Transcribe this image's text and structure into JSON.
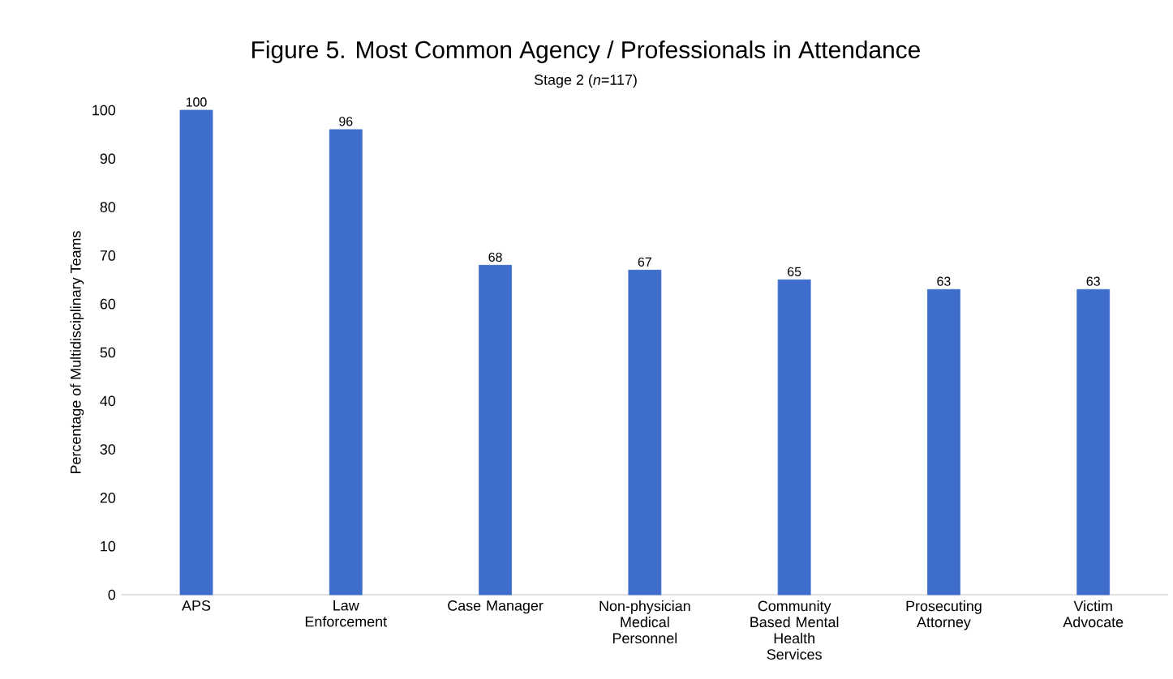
{
  "chart_data": {
    "type": "bar",
    "title": "Figure 5. Most Common Agency / Professionals in Attendance",
    "subtitle": "Stage 2 (*n*=117)",
    "ylabel": "Percentage of Multidisciplinary Teams",
    "categories": [
      "APS",
      "Law Enforcement",
      "Case Manager",
      "Non-physician Medical Personnel",
      "Community Based Mental Health Services",
      "Prosecuting Attorney",
      "Victim Advocate"
    ],
    "values": [
      100,
      96,
      68,
      67,
      65,
      63,
      63
    ],
    "color": "#3f6dcb",
    "ylim": [
      0,
      100
    ],
    "yticks": [
      0,
      10,
      20,
      30,
      40,
      50,
      60,
      70,
      80,
      90,
      100
    ],
    "data_labels": true,
    "grid": false
  }
}
